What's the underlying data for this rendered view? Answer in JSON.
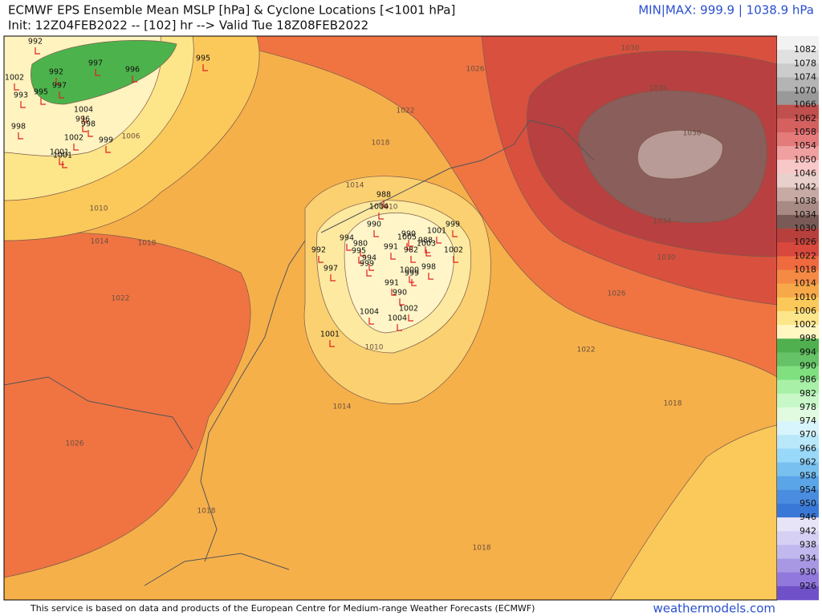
{
  "header": {
    "title": "ECMWF EPS Ensemble Mean MSLP [hPa] & Cyclone Locations [<1001 hPa]",
    "subtitle": "Init: 12Z04FEB2022 -- [102] hr --> Valid Tue 18Z08FEB2022",
    "minmax": "MIN|MAX: 999.9 | 1038.9 hPa"
  },
  "footer": {
    "credit": "This service is based on data and products of the European Centre for Medium-range Weather Forecasts (ECMWF)",
    "site": "weathermodels.com"
  },
  "colorbar": {
    "levels": [
      1082,
      1078,
      1074,
      1070,
      1066,
      1062,
      1058,
      1054,
      1050,
      1046,
      1042,
      1038,
      1034,
      1030,
      1026,
      1022,
      1018,
      1014,
      1010,
      1006,
      1002,
      998,
      994,
      990,
      986,
      982,
      978,
      974,
      970,
      966,
      962,
      958,
      954,
      950,
      946,
      942,
      938,
      934,
      930,
      926
    ],
    "colors": [
      "#f2f2f2",
      "#e0e0e0",
      "#cccccc",
      "#b4b4b4",
      "#999999",
      "#c0504d",
      "#d46060",
      "#e47a7a",
      "#f0a0a0",
      "#f8c8c8",
      "#e8d0cc",
      "#c8aaa4",
      "#a88a84",
      "#7a5a56",
      "#b8403c",
      "#d8483c",
      "#ef6a3e",
      "#f58a44",
      "#f7a848",
      "#fbc95a",
      "#fde58a",
      "#fff6c0",
      "#50b050",
      "#66c266",
      "#80e080",
      "#a8f0a8",
      "#c8f8c8",
      "#e0fbe0",
      "#d8f4fc",
      "#b8e8fa",
      "#98d8f8",
      "#78c0f0",
      "#5aa4e8",
      "#4a8ce0",
      "#3a78d8",
      "#e8e4f8",
      "#d6d0f4",
      "#c0b8ee",
      "#a898e4",
      "#9078dc",
      "#7050c8"
    ]
  },
  "contour_labels": [
    1030,
    1034,
    1038,
    1034,
    1030,
    1026,
    1022,
    1018,
    1014,
    1010,
    1006,
    1010,
    1014,
    1018,
    1022,
    1026,
    1022,
    1010,
    1014,
    1018,
    1018,
    1018,
    1026
  ],
  "cyclones": [
    992,
    1002,
    993,
    995,
    992,
    997,
    997,
    996,
    995,
    998,
    1004,
    996,
    998,
    1002,
    999,
    1001,
    1001,
    988,
    1004,
    990,
    992,
    980,
    994,
    995,
    994,
    999,
    997,
    991,
    990,
    1005,
    988,
    1003,
    982,
    1001,
    999,
    1002,
    998,
    1000,
    999,
    991,
    990,
    1004,
    1002,
    1004,
    1001
  ]
}
